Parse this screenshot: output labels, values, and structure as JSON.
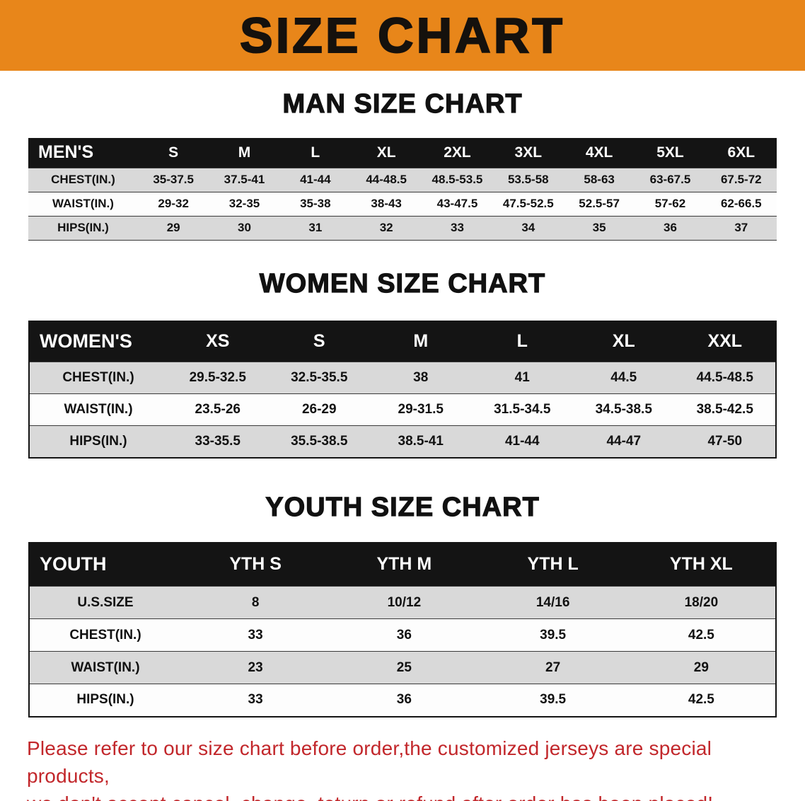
{
  "banner": {
    "title": "SIZE CHART",
    "bg_color": "#E8861A",
    "text_color": "#15110d"
  },
  "colors": {
    "table_header_bg": "#141414",
    "table_header_text": "#ffffff",
    "row_stripe_gray": "#d9d9d9",
    "row_stripe_white": "#fdfdfd",
    "disclaimer_red": "#c2272b"
  },
  "tables": [
    {
      "heading": "MAN SIZE CHART",
      "header_label": "MEN'S",
      "columns": [
        "S",
        "M",
        "L",
        "XL",
        "2XL",
        "3XL",
        "4XL",
        "5XL",
        "6XL"
      ],
      "rows": [
        {
          "label": "CHEST(IN.)",
          "values": [
            "35-37.5",
            "37.5-41",
            "41-44",
            "44-48.5",
            "48.5-53.5",
            "53.5-58",
            "58-63",
            "63-67.5",
            "67.5-72"
          ]
        },
        {
          "label": "WAIST(IN.)",
          "values": [
            "29-32",
            "32-35",
            "35-38",
            "38-43",
            "43-47.5",
            "47.5-52.5",
            "52.5-57",
            "57-62",
            "62-66.5"
          ]
        },
        {
          "label": "HIPS(IN.)",
          "values": [
            "29",
            "30",
            "31",
            "32",
            "33",
            "34",
            "35",
            "36",
            "37"
          ]
        }
      ]
    },
    {
      "heading": "WOMEN SIZE CHART",
      "header_label": "WOMEN'S",
      "columns": [
        "XS",
        "S",
        "M",
        "L",
        "XL",
        "XXL"
      ],
      "rows": [
        {
          "label": "CHEST(IN.)",
          "values": [
            "29.5-32.5",
            "32.5-35.5",
            "38",
            "41",
            "44.5",
            "44.5-48.5"
          ]
        },
        {
          "label": "WAIST(IN.)",
          "values": [
            "23.5-26",
            "26-29",
            "29-31.5",
            "31.5-34.5",
            "34.5-38.5",
            "38.5-42.5"
          ]
        },
        {
          "label": "HIPS(IN.)",
          "values": [
            "33-35.5",
            "35.5-38.5",
            "38.5-41",
            "41-44",
            "44-47",
            "47-50"
          ]
        }
      ]
    },
    {
      "heading": "YOUTH SIZE CHART",
      "header_label": "YOUTH",
      "columns": [
        "YTH S",
        "YTH M",
        "YTH L",
        "YTH XL"
      ],
      "rows": [
        {
          "label": "U.S.SIZE",
          "values": [
            "8",
            "10/12",
            "14/16",
            "18/20"
          ]
        },
        {
          "label": "CHEST(IN.)",
          "values": [
            "33",
            "36",
            "39.5",
            "42.5"
          ]
        },
        {
          "label": "WAIST(IN.)",
          "values": [
            "23",
            "25",
            "27",
            "29"
          ]
        },
        {
          "label": "HIPS(IN.)",
          "values": [
            "33",
            "36",
            "39.5",
            "42.5"
          ]
        }
      ]
    }
  ],
  "disclaimer": {
    "line1": "Please refer to our size chart before order,the customized jerseys are special products,",
    "line2": "we don't accept cancel, change, teturn or refund after order has been placed!"
  }
}
